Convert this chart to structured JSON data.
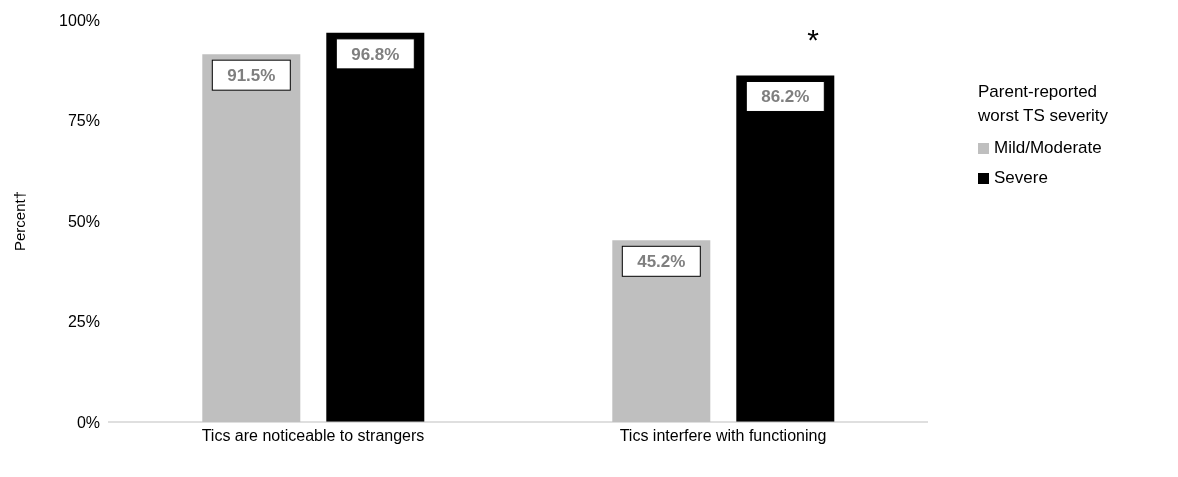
{
  "chart_data": {
    "type": "bar",
    "ylabel": "Percent†",
    "legend_title": "Parent-reported worst TS severity",
    "categories": [
      "Tics are noticeable to strangers",
      "Tics interfere with functioning"
    ],
    "series": [
      {
        "name": "Mild/Moderate",
        "color": "#bfbfbf",
        "values": [
          91.5,
          45.2
        ],
        "value_labels": [
          "91.5%",
          "45.2%"
        ]
      },
      {
        "name": "Severe",
        "color": "#000000",
        "values": [
          96.8,
          86.2
        ],
        "value_labels": [
          "96.8%",
          "86.2%"
        ]
      }
    ],
    "ylim": [
      0,
      100
    ],
    "yticks": [
      {
        "value": 0,
        "label": "0%"
      },
      {
        "value": 25,
        "label": "25%"
      },
      {
        "value": 50,
        "label": "50%"
      },
      {
        "value": 75,
        "label": "75%"
      },
      {
        "value": 100,
        "label": "100%"
      }
    ],
    "grid": false,
    "legend": "right",
    "annotations": [
      "*"
    ]
  }
}
